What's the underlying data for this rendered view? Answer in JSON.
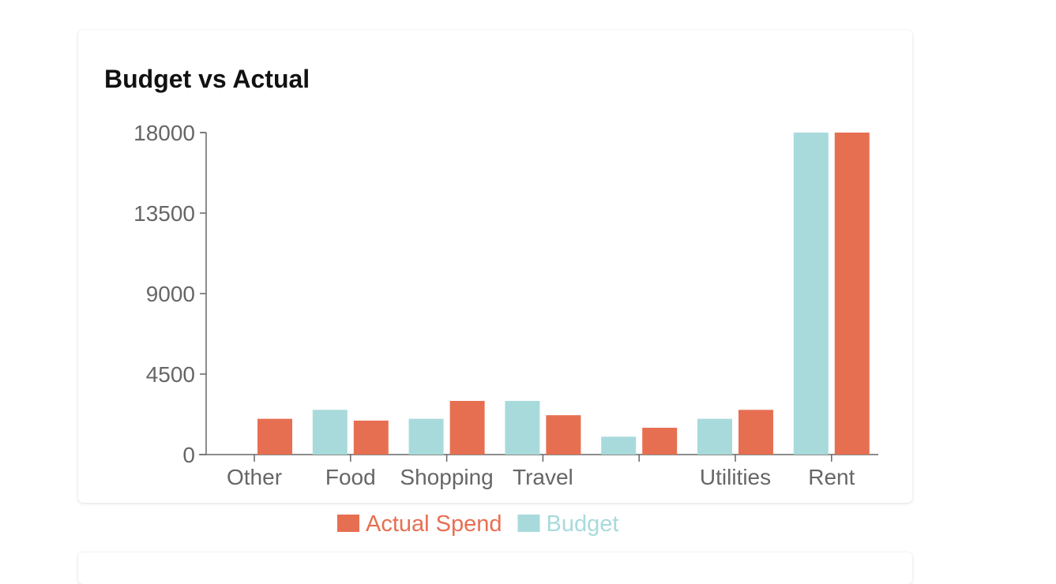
{
  "card": {
    "title": "Budget vs Actual"
  },
  "chart_data": {
    "type": "bar",
    "title": "Budget vs Actual",
    "categories": [
      "Other",
      "Food",
      "Shopping",
      "Travel",
      "",
      "Utilities",
      "Rent"
    ],
    "series": [
      {
        "name": "Budget",
        "color": "#a8dadc",
        "values": [
          0,
          2500,
          2000,
          3000,
          1000,
          2000,
          18000
        ]
      },
      {
        "name": "Actual Spend",
        "color": "#e76f51",
        "values": [
          2000,
          1900,
          3000,
          2200,
          1500,
          2500,
          18000
        ]
      }
    ],
    "yticks": [
      0,
      4500,
      9000,
      13500,
      18000
    ],
    "ylim": [
      0,
      18000
    ],
    "xlabel": "",
    "ylabel": "",
    "grid": false,
    "legend": {
      "position": "bottom",
      "items": [
        {
          "label": "Actual Spend",
          "color": "#e76f51"
        },
        {
          "label": "Budget",
          "color": "#a8dadc"
        }
      ]
    }
  }
}
